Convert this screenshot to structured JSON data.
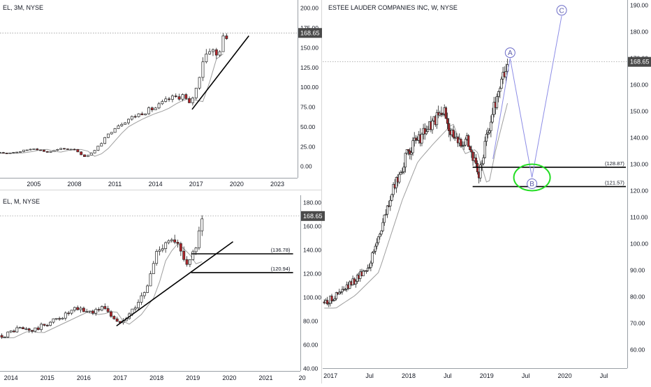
{
  "panes": {
    "q3m": {
      "title": "EL, 3M, NYSE",
      "y_ticks": [
        "200.00",
        "175.00",
        "150.00",
        "125.00",
        "100.00",
        "75.00",
        "50.00",
        "25.00",
        "0.00"
      ],
      "x_ticks": [
        "2005",
        "2008",
        "2011",
        "2014",
        "2017",
        "2020",
        "2023"
      ],
      "price_label": "168.65"
    },
    "m": {
      "title": "EL, M, NYSE",
      "y_ticks": [
        "180.00",
        "160.00",
        "140.00",
        "120.00",
        "100.00",
        "80.00",
        "60.00",
        "40.00"
      ],
      "x_ticks": [
        "2014",
        "2015",
        "2016",
        "2017",
        "2018",
        "2019",
        "2020",
        "2021",
        "20"
      ],
      "price_label": "168.65",
      "levels": [
        "(136.78)",
        "(120.94)"
      ]
    },
    "w": {
      "title": "ESTEE LAUDER COMPANIES INC, W, NYSE",
      "y_ticks": [
        "190.00",
        "180.00",
        "170.00",
        "160.00",
        "150.00",
        "140.00",
        "130.00",
        "120.00",
        "110.00",
        "100.00",
        "90.00",
        "80.00",
        "70.00",
        "60.00"
      ],
      "x_ticks": [
        "2017",
        "Jul",
        "2018",
        "Jul",
        "2019",
        "Jul",
        "2020",
        "Jul"
      ],
      "price_label": "168.65",
      "levels": [
        "(128.87)",
        "(121.57)"
      ],
      "waves": [
        "A",
        "B",
        "C"
      ]
    }
  },
  "colors": {
    "up": "#ffffff",
    "down": "#b5272d",
    "green": "#2a7a3a",
    "ma": "#9e9e9e",
    "badge": "#4a4a4a",
    "wave": "#8c8ce6",
    "circle": "#22dd22"
  },
  "chart_data": [
    {
      "type": "candlestick",
      "title": "EL, 3M, NYSE",
      "ylim": [
        -10,
        205
      ],
      "last_price": 168.65,
      "close_series": [
        {
          "x": 2003.0,
          "y": 17
        },
        {
          "x": 2004.0,
          "y": 19
        },
        {
          "x": 2005.0,
          "y": 23
        },
        {
          "x": 2006.0,
          "y": 18
        },
        {
          "x": 2007.0,
          "y": 22
        },
        {
          "x": 2008.0,
          "y": 22
        },
        {
          "x": 2008.75,
          "y": 12
        },
        {
          "x": 2009.5,
          "y": 20
        },
        {
          "x": 2010.0,
          "y": 30
        },
        {
          "x": 2011.0,
          "y": 50
        },
        {
          "x": 2012.0,
          "y": 60
        },
        {
          "x": 2013.0,
          "y": 68
        },
        {
          "x": 2014.0,
          "y": 74
        },
        {
          "x": 2015.0,
          "y": 85
        },
        {
          "x": 2016.0,
          "y": 90
        },
        {
          "x": 2016.5,
          "y": 78
        },
        {
          "x": 2017.0,
          "y": 98
        },
        {
          "x": 2017.5,
          "y": 135
        },
        {
          "x": 2018.0,
          "y": 150
        },
        {
          "x": 2018.5,
          "y": 140
        },
        {
          "x": 2019.0,
          "y": 160
        },
        {
          "x": 2019.3,
          "y": 168.65
        }
      ]
    },
    {
      "type": "candlestick",
      "title": "EL, M, NYSE",
      "ylim": [
        38,
        185
      ],
      "last_price": 168.65,
      "levels": [
        136.78,
        120.94
      ],
      "close_series": [
        {
          "x": 2013.8,
          "y": 68
        },
        {
          "x": 2014.2,
          "y": 74
        },
        {
          "x": 2014.6,
          "y": 72
        },
        {
          "x": 2015.0,
          "y": 78
        },
        {
          "x": 2015.4,
          "y": 84
        },
        {
          "x": 2015.8,
          "y": 90
        },
        {
          "x": 2016.2,
          "y": 88
        },
        {
          "x": 2016.6,
          "y": 92
        },
        {
          "x": 2016.9,
          "y": 78
        },
        {
          "x": 2017.3,
          "y": 88
        },
        {
          "x": 2017.7,
          "y": 105
        },
        {
          "x": 2018.0,
          "y": 138
        },
        {
          "x": 2018.3,
          "y": 150
        },
        {
          "x": 2018.6,
          "y": 142
        },
        {
          "x": 2018.9,
          "y": 128
        },
        {
          "x": 2019.1,
          "y": 145
        },
        {
          "x": 2019.3,
          "y": 168.65
        }
      ]
    },
    {
      "type": "candlestick",
      "title": "ESTEE LAUDER COMPANIES INC, W, NYSE",
      "ylim": [
        53,
        192
      ],
      "last_price": 168.65,
      "levels": [
        128.87,
        121.57
      ],
      "close_series": [
        {
          "x": 2016.95,
          "y": 78
        },
        {
          "x": 2017.2,
          "y": 83
        },
        {
          "x": 2017.5,
          "y": 92
        },
        {
          "x": 2017.8,
          "y": 120
        },
        {
          "x": 2018.0,
          "y": 135
        },
        {
          "x": 2018.2,
          "y": 142
        },
        {
          "x": 2018.45,
          "y": 150
        },
        {
          "x": 2018.6,
          "y": 138
        },
        {
          "x": 2018.75,
          "y": 140
        },
        {
          "x": 2018.9,
          "y": 125
        },
        {
          "x": 2019.0,
          "y": 140
        },
        {
          "x": 2019.15,
          "y": 158
        },
        {
          "x": 2019.28,
          "y": 168.65
        }
      ],
      "projection": [
        {
          "label": "A",
          "x": 2019.3,
          "y": 170
        },
        {
          "label": "B",
          "x": 2019.58,
          "y": 125
        },
        {
          "label": "C",
          "x": 2019.96,
          "y": 186
        }
      ]
    }
  ]
}
